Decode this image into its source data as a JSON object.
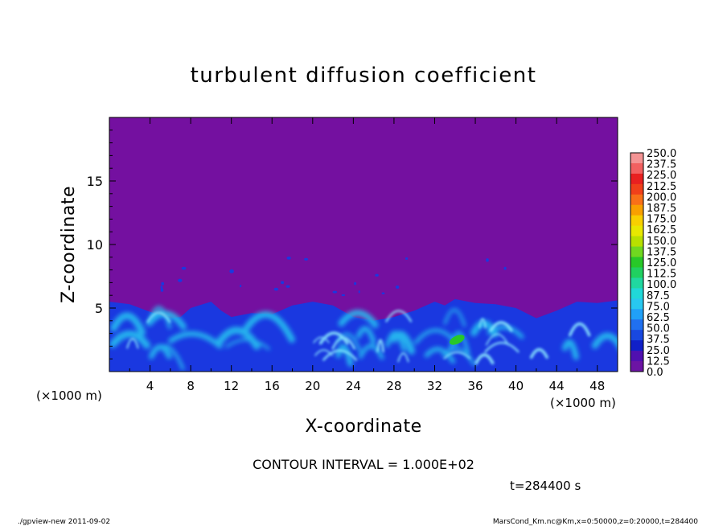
{
  "chart_data": {
    "type": "heatmap",
    "title": "turbulent diffusion coefficient",
    "xlabel": "X-coordinate",
    "ylabel": "Z-coordinate",
    "x_unit": "(×1000 m)",
    "z_unit": "(×1000 m)",
    "xlim": [
      0,
      50
    ],
    "ylim": [
      0,
      20
    ],
    "x_ticks": [
      4,
      8,
      12,
      16,
      20,
      24,
      28,
      32,
      36,
      40,
      44,
      48
    ],
    "y_ticks": [
      5,
      10,
      15
    ],
    "contour_interval_text": "CONTOUR INTERVAL = 1.000E+02",
    "time_text": "t=284400 s",
    "background_value": 0.0,
    "boundary_layer_top": [
      {
        "x": 0,
        "z": 5.5
      },
      {
        "x": 2,
        "z": 5.3
      },
      {
        "x": 4,
        "z": 4.7
      },
      {
        "x": 6,
        "z": 4.2
      },
      {
        "x": 7,
        "z": 4.3
      },
      {
        "x": 8,
        "z": 5.0
      },
      {
        "x": 10,
        "z": 5.5
      },
      {
        "x": 11,
        "z": 4.8
      },
      {
        "x": 12,
        "z": 4.3
      },
      {
        "x": 14,
        "z": 4.6
      },
      {
        "x": 16,
        "z": 4.5
      },
      {
        "x": 18,
        "z": 5.2
      },
      {
        "x": 20,
        "z": 5.5
      },
      {
        "x": 22,
        "z": 5.2
      },
      {
        "x": 24,
        "z": 4.3
      },
      {
        "x": 26,
        "z": 4.0
      },
      {
        "x": 28,
        "z": 4.3
      },
      {
        "x": 30,
        "z": 4.8
      },
      {
        "x": 32,
        "z": 5.5
      },
      {
        "x": 33,
        "z": 5.2
      },
      {
        "x": 34,
        "z": 5.7
      },
      {
        "x": 36,
        "z": 5.4
      },
      {
        "x": 38,
        "z": 5.3
      },
      {
        "x": 40,
        "z": 5.0
      },
      {
        "x": 42,
        "z": 4.2
      },
      {
        "x": 44,
        "z": 4.8
      },
      {
        "x": 46,
        "z": 5.5
      },
      {
        "x": 48,
        "z": 5.4
      },
      {
        "x": 50,
        "z": 5.6
      }
    ],
    "local_maximum": {
      "x": 34.2,
      "z": 2.5,
      "value": 125.0
    },
    "colorbar": {
      "levels": [
        "250.0",
        "237.5",
        "225.0",
        "212.5",
        "200.0",
        "187.5",
        "175.0",
        "162.5",
        "150.0",
        "137.5",
        "125.0",
        "112.5",
        "100.0",
        "87.5",
        "75.0",
        "62.5",
        "50.0",
        "37.5",
        "25.0",
        "12.5",
        "0.0"
      ],
      "colors": [
        "#f49494",
        "#f26060",
        "#e82020",
        "#f0401a",
        "#f87018",
        "#f8a000",
        "#f8d000",
        "#e8e800",
        "#b8e000",
        "#70d820",
        "#28c828",
        "#20d060",
        "#20d8a0",
        "#20d8d8",
        "#28c8f0",
        "#20a0f8",
        "#2070f0",
        "#1848e0",
        "#1020c8",
        "#5010b0",
        "#6c14a4"
      ]
    }
  },
  "footer": {
    "left": "./gpview-new  2011-09-02",
    "right": "MarsCond_Km.nc@Km,x=0:50000,z=0:20000,t=284400"
  },
  "colors": {
    "background_field": "#7410a0",
    "low_turbulence": "#1a38e0",
    "mid_turbulence": "#28c0f0",
    "peak": "#28c828"
  }
}
